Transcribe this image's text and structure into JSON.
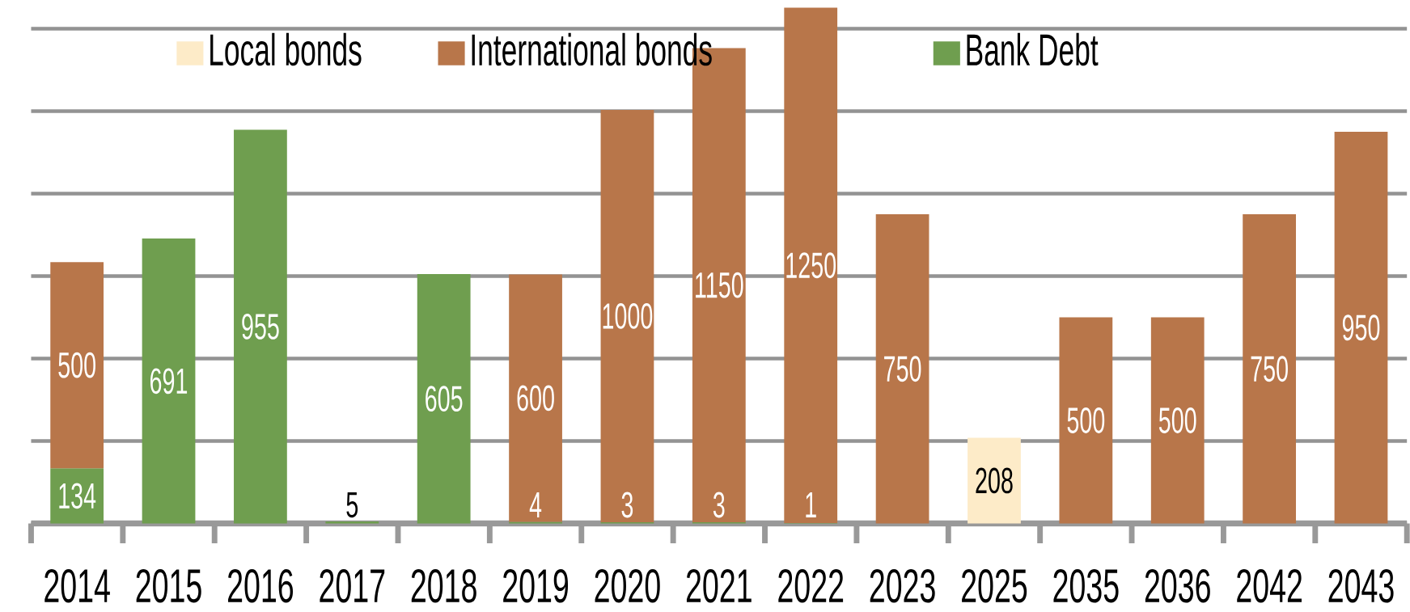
{
  "chart_data": {
    "type": "bar",
    "stacked": true,
    "categories": [
      "2014",
      "2015",
      "2016",
      "2017",
      "2018",
      "2019",
      "2020",
      "2021",
      "2022",
      "2023",
      "2025",
      "2035",
      "2036",
      "2042",
      "2043"
    ],
    "series": [
      {
        "name": "Local bonds",
        "color": "#fdebc8",
        "values": [
          null,
          null,
          null,
          null,
          null,
          null,
          null,
          null,
          null,
          null,
          208,
          null,
          null,
          null,
          null
        ]
      },
      {
        "name": "Bank Debt",
        "color": "#6f9e4f",
        "values": [
          134,
          691,
          955,
          5,
          605,
          4,
          3,
          3,
          1,
          null,
          null,
          null,
          null,
          null,
          null
        ]
      },
      {
        "name": "International bonds",
        "color": "#b8764a",
        "values": [
          500,
          null,
          null,
          null,
          null,
          600,
          1000,
          1150,
          1250,
          750,
          null,
          500,
          500,
          750,
          950
        ]
      }
    ],
    "tick_labels": "x",
    "grid": "y",
    "legend": "top",
    "data_labels": true
  }
}
